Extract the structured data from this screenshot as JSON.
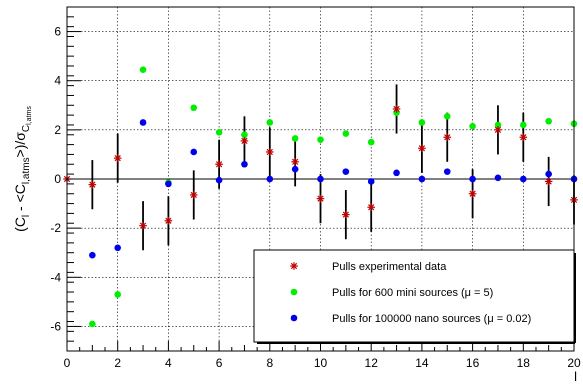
{
  "chart_data": {
    "type": "scatter",
    "xlabel": "l",
    "ylabel": "(C_l - <C_l,atms>)/σ_C_l,atms",
    "ylabel_parts": {
      "open": "(C",
      "sub1": "l",
      "mid": " - <C",
      "sub2": "l,atms",
      "close": ">)/σ",
      "sub3": "C",
      "sub3b": "l,atms"
    },
    "xlim": [
      0,
      20
    ],
    "ylim": [
      -7,
      7
    ],
    "xticks": [
      "0",
      "2",
      "4",
      "6",
      "8",
      "10",
      "12",
      "14",
      "16",
      "18",
      "20"
    ],
    "yticks": [
      "-6",
      "-4",
      "-2",
      "0",
      "2",
      "4",
      "6"
    ],
    "grid": true,
    "legend_position": "bottom-right",
    "series": [
      {
        "name": "Pulls experimental data",
        "color": "#c00000",
        "marker": "star",
        "x": [
          0,
          1,
          2,
          3,
          4,
          5,
          6,
          7,
          8,
          9,
          10,
          11,
          12,
          13,
          14,
          15,
          16,
          17,
          18,
          19,
          20
        ],
        "y": [
          0.0,
          -0.23,
          0.85,
          -1.9,
          -1.7,
          -0.65,
          0.6,
          1.55,
          1.1,
          0.7,
          -0.8,
          -1.45,
          -1.15,
          2.85,
          1.25,
          1.7,
          -0.6,
          2.0,
          1.7,
          -0.1,
          -0.85
        ],
        "err": [
          0.0,
          1.0,
          1.0,
          1.0,
          1.0,
          1.0,
          1.0,
          1.0,
          1.0,
          1.0,
          1.0,
          1.0,
          1.0,
          1.0,
          1.0,
          1.0,
          1.0,
          1.0,
          1.0,
          1.0,
          1.0
        ]
      },
      {
        "name": "Pulls for 600 mini sources (μ = 5)",
        "color": "#00ee00",
        "marker": "circle",
        "x": [
          1,
          2,
          3,
          4,
          5,
          6,
          7,
          8,
          9,
          10,
          11,
          12,
          13,
          14,
          15,
          16,
          17,
          18,
          19,
          20
        ],
        "y": [
          -5.9,
          -4.7,
          4.45,
          -0.15,
          2.9,
          1.9,
          1.8,
          2.3,
          1.65,
          1.6,
          1.85,
          1.5,
          2.7,
          2.3,
          2.55,
          2.15,
          2.2,
          2.2,
          2.35,
          2.25
        ]
      },
      {
        "name": "Pulls for 100000 nano sources (μ = 0.02)",
        "color": "#0000ee",
        "marker": "circle",
        "x": [
          1,
          2,
          3,
          4,
          5,
          6,
          7,
          8,
          9,
          10,
          11,
          12,
          13,
          14,
          15,
          16,
          17,
          18,
          19,
          20
        ],
        "y": [
          -3.1,
          -2.8,
          2.3,
          -0.2,
          1.1,
          -0.05,
          0.6,
          0.0,
          0.4,
          0.0,
          0.3,
          -0.1,
          0.25,
          0.0,
          0.3,
          0.0,
          0.05,
          0.0,
          0.2,
          0.0
        ]
      }
    ]
  }
}
